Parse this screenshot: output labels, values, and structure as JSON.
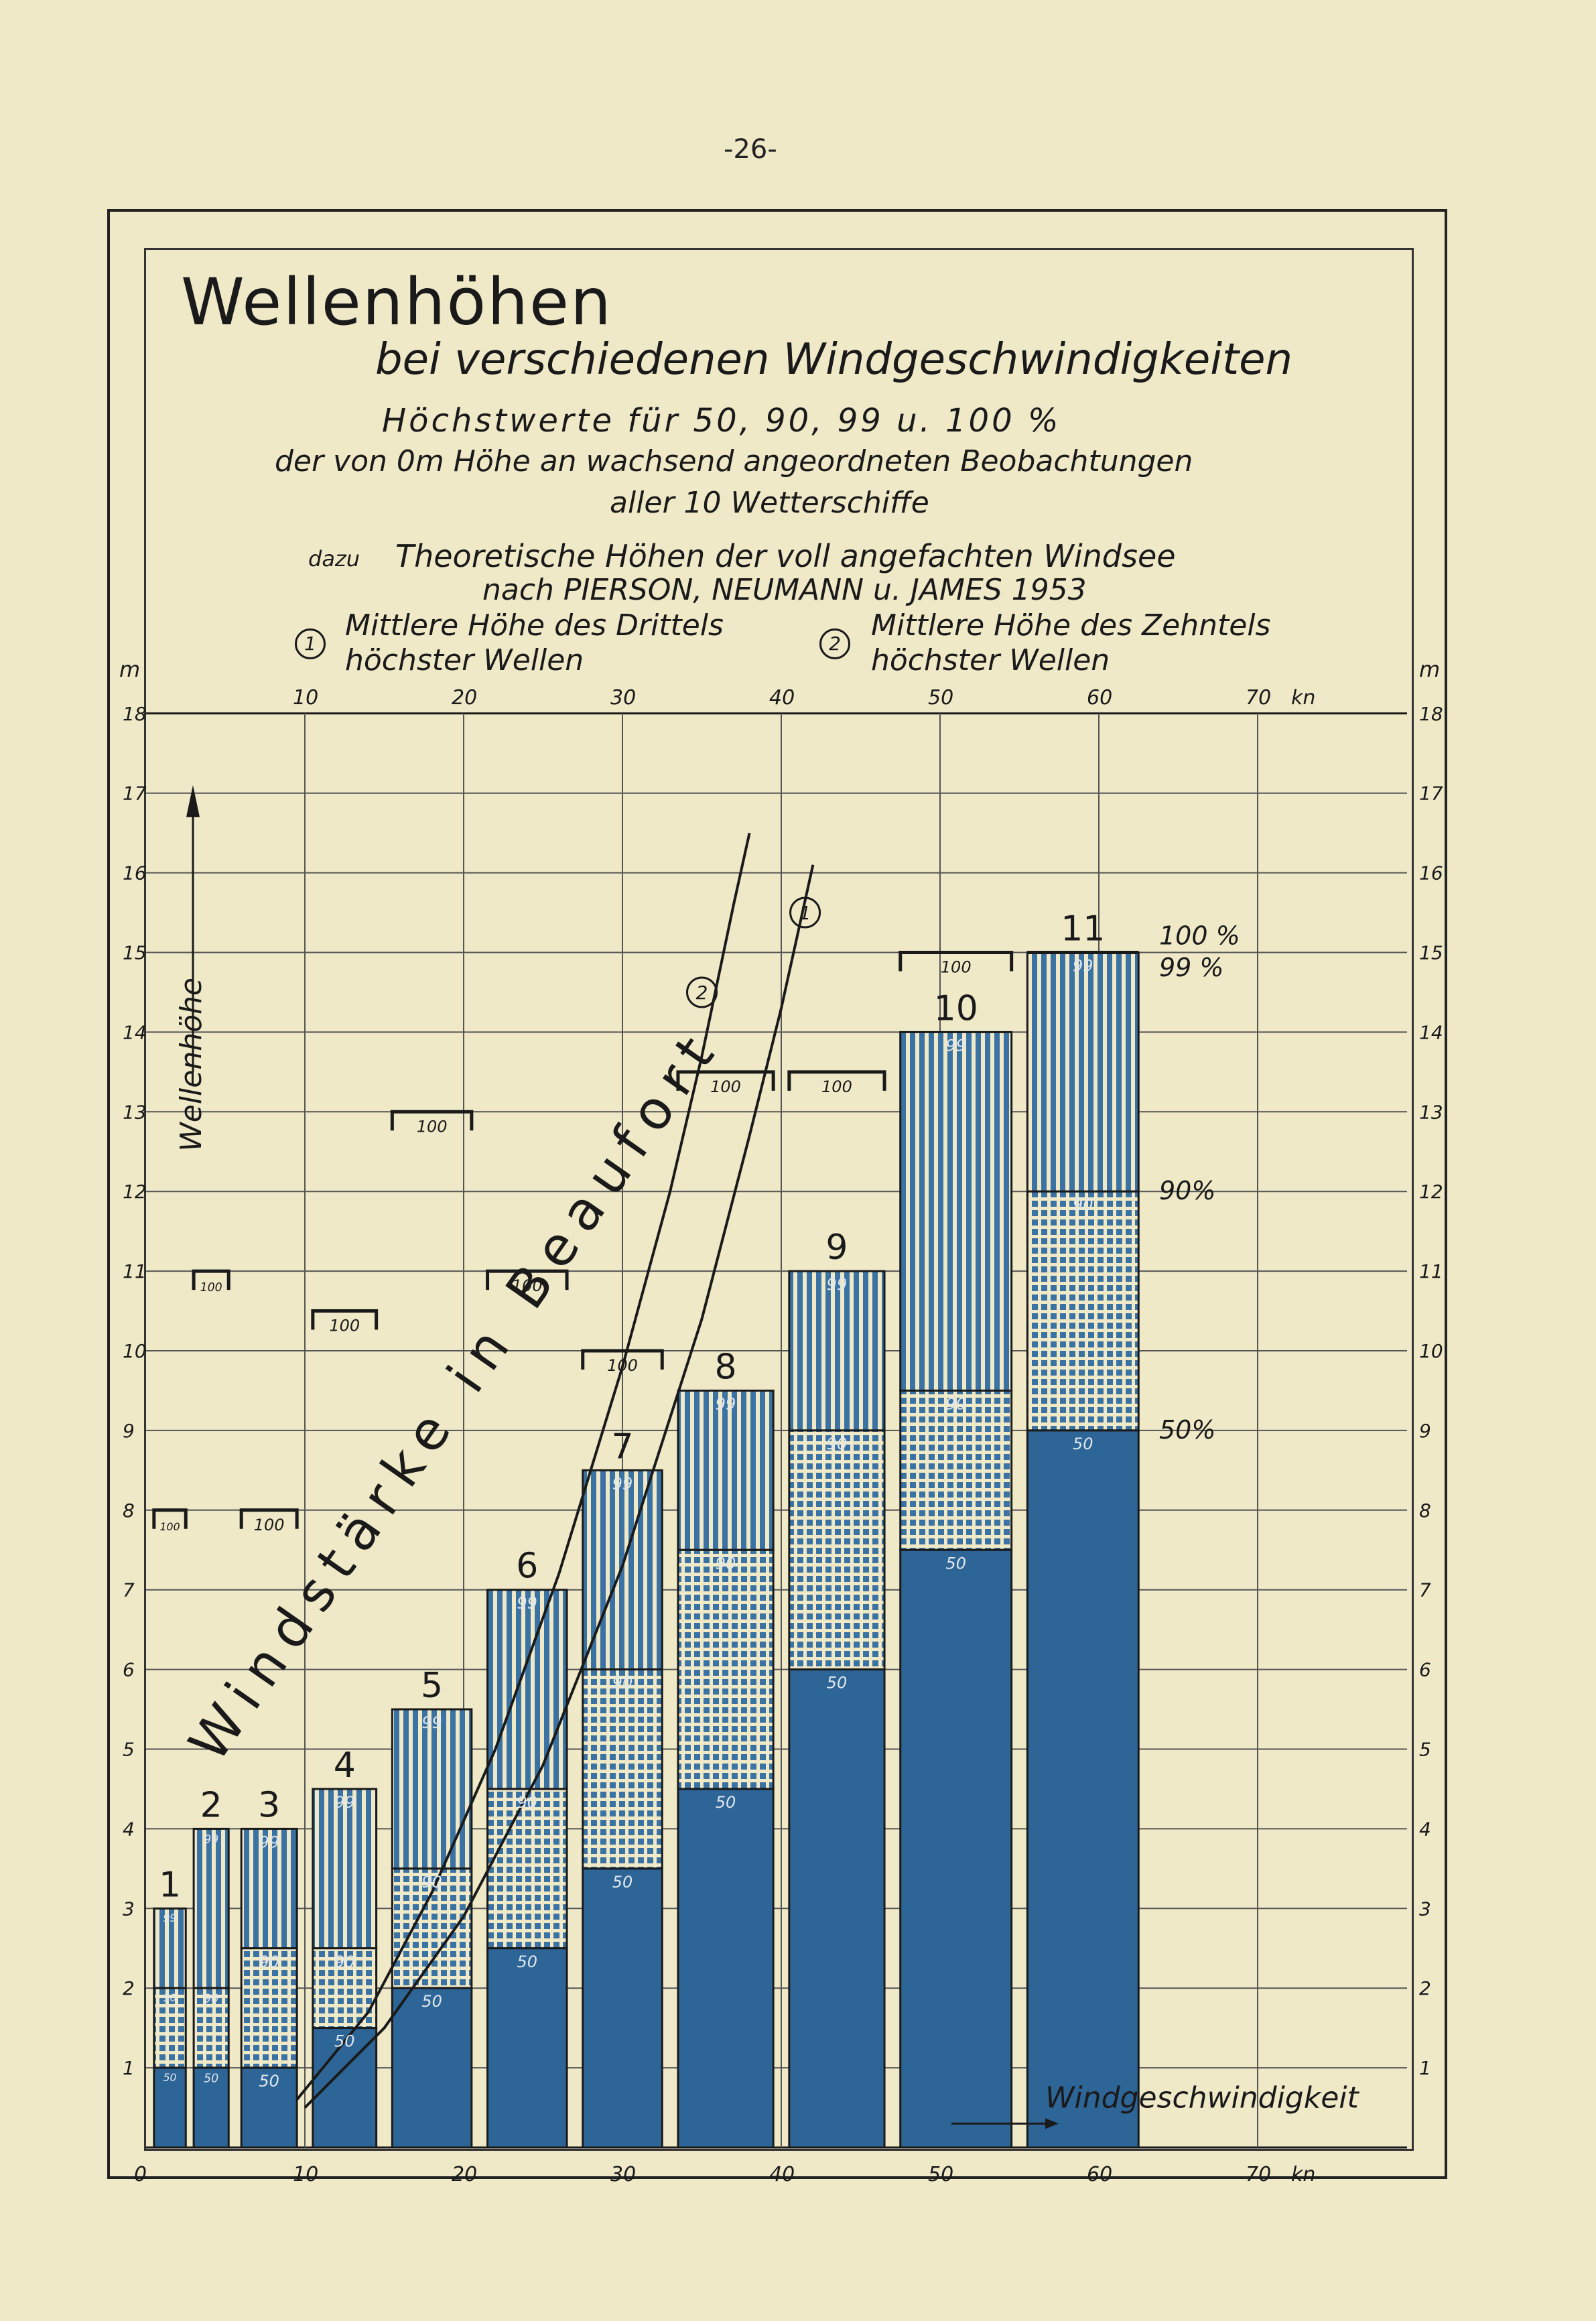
{
  "page_number": "-26-",
  "title": {
    "main": "Wellenhöhen",
    "sub": "bei verschiedenen Windgeschwindigkeiten",
    "line1": "Höchstwerte für 50, 90, 99 u. 100 %",
    "line2": "der von 0m Höhe an wachsend angeordneten Beobachtungen",
    "line3": "aller 10 Wetterschiffe"
  },
  "theory": {
    "prefix": "dazu",
    "line1": "Theoretische Höhen der voll angefachten Windsee",
    "line2": "nach PIERSON, NEUMANN u. JAMES 1953"
  },
  "legend": [
    {
      "marker": "1",
      "line1": "Mittlere Höhe des Drittels",
      "line2": "höchster Wellen"
    },
    {
      "marker": "2",
      "line1": "Mittlere Höhe des Zehntels",
      "line2": "höchster Wellen"
    }
  ],
  "chart_data": {
    "type": "bar",
    "xlabel": "Windgeschwindigkeit",
    "ylabel": "Wellenhöhe",
    "x_unit": "kn",
    "y_unit": "m",
    "xlim": [
      0,
      75
    ],
    "ylim": [
      0,
      18
    ],
    "x_ticks": [
      "0",
      "10",
      "20",
      "30",
      "40",
      "50",
      "60",
      "70"
    ],
    "y_ticks": [
      "1",
      "2",
      "3",
      "4",
      "5",
      "6",
      "7",
      "8",
      "9",
      "10",
      "11",
      "12",
      "13",
      "14",
      "15",
      "16",
      "17",
      "18"
    ],
    "diagonal_label": "Windstärke in Beaufort",
    "percent_labels": [
      {
        "text": "100 %",
        "y": 15.1
      },
      {
        "text": "99 %",
        "y": 14.7
      },
      {
        "text": "90%",
        "y": 11.9
      },
      {
        "text": "50%",
        "y": 8.9
      }
    ],
    "bars": [
      {
        "beaufort": "1",
        "x0": 0.5,
        "x1": 2.5,
        "p50": 1.0,
        "p90": 2.0,
        "p99": 3.0,
        "p100": 8.0
      },
      {
        "beaufort": "2",
        "x0": 3.0,
        "x1": 5.2,
        "p50": 1.0,
        "p90": 2.0,
        "p99": 4.0,
        "p100": 11.0
      },
      {
        "beaufort": "3",
        "x0": 6.0,
        "x1": 9.5,
        "p50": 1.0,
        "p90": 2.5,
        "p99": 4.0,
        "p100": 8.0
      },
      {
        "beaufort": "4",
        "x0": 10.5,
        "x1": 14.5,
        "p50": 1.5,
        "p90": 2.5,
        "p99": 4.5,
        "p100": 10.5
      },
      {
        "beaufort": "5",
        "x0": 15.5,
        "x1": 20.5,
        "p50": 2.0,
        "p90": 3.5,
        "p99": 5.5,
        "p100": 13.0
      },
      {
        "beaufort": "6",
        "x0": 21.5,
        "x1": 26.5,
        "p50": 2.5,
        "p90": 4.5,
        "p99": 7.0,
        "p100": 11.0
      },
      {
        "beaufort": "7",
        "x0": 27.5,
        "x1": 32.5,
        "p50": 3.5,
        "p90": 6.0,
        "p99": 8.5,
        "p100": 10.0
      },
      {
        "beaufort": "8",
        "x0": 33.5,
        "x1": 39.5,
        "p50": 4.5,
        "p90": 7.5,
        "p99": 9.5,
        "p100": 13.5
      },
      {
        "beaufort": "9",
        "x0": 40.5,
        "x1": 46.5,
        "p50": 6.0,
        "p90": 9.0,
        "p99": 11.0,
        "p100": 13.5
      },
      {
        "beaufort": "10",
        "x0": 47.5,
        "x1": 54.5,
        "p50": 7.5,
        "p90": 9.5,
        "p99": 14.0,
        "p100": 15.0
      },
      {
        "beaufort": "11",
        "x0": 55.5,
        "x1": 62.5,
        "p50": 9.0,
        "p90": 12.0,
        "p99": 15.0,
        "p100": 15.0
      }
    ],
    "curve_1": [
      [
        10,
        0.5
      ],
      [
        15,
        1.5
      ],
      [
        20,
        2.9
      ],
      [
        25,
        4.8
      ],
      [
        30,
        7.3
      ],
      [
        35,
        10.4
      ],
      [
        38,
        12.7
      ],
      [
        40,
        14.3
      ],
      [
        42,
        16.1
      ]
    ],
    "curve_2": [
      [
        9.5,
        0.6
      ],
      [
        14,
        1.7
      ],
      [
        18,
        3.2
      ],
      [
        22,
        5.0
      ],
      [
        26,
        7.2
      ],
      [
        30,
        9.8
      ],
      [
        33,
        12.0
      ],
      [
        35,
        13.7
      ],
      [
        37,
        15.6
      ],
      [
        38,
        16.5
      ]
    ],
    "curve_1_marker": {
      "label": "1",
      "x": 41.5,
      "y": 15.5
    },
    "curve_2_marker": {
      "label": "2",
      "x": 35.0,
      "y": 14.5
    },
    "bar_percent_labels": [
      "50",
      "90",
      "99",
      "100"
    ],
    "colors": {
      "dark": "#2e6597",
      "stripe": "#3a72a3",
      "paper": "#efe9c8",
      "ink": "#1a1a1a"
    }
  }
}
